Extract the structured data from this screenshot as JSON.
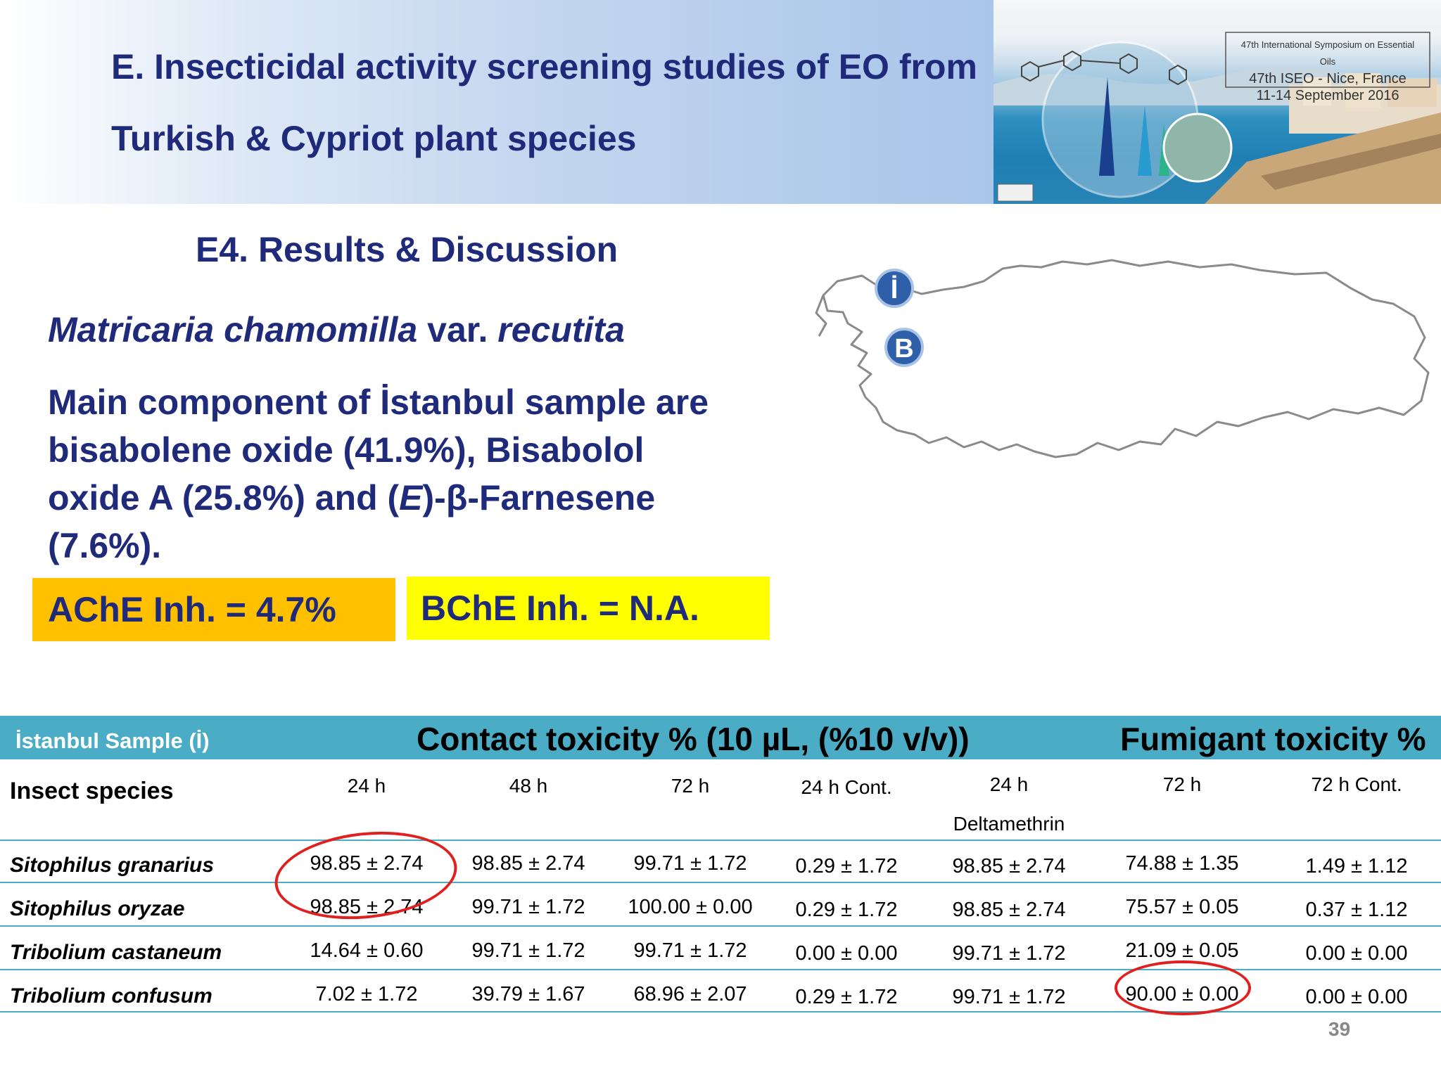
{
  "header": {
    "title_line1": "E. Insecticidal activity screening studies of EO from",
    "title_line2": "Turkish & Cypriot plant species"
  },
  "banner": {
    "line1": "47th International Symposium on Essential Oils",
    "line2": "47th ISEO - Nice, France",
    "line3": "11-14 September 2016"
  },
  "section_title": "E4. Results & Discussion",
  "species": {
    "genus_species": "Matricaria chamomilla",
    "var": "var.",
    "variety": "recutita"
  },
  "main_text": {
    "part1": "Main component of İstanbul sample are bisabolene oxide (41.9%), Bisabolol oxide A (25.8%) and (",
    "italic": "E",
    "part2": ")-β-Farnesene (7.6%)."
  },
  "boxes": {
    "ache": "AChE Inh. = 4.7%",
    "bche": "BChE Inh. = N.A."
  },
  "map": {
    "marker_istanbul": "İ",
    "marker_b": "B"
  },
  "table": {
    "sample_label": "İstanbul Sample (İ)",
    "contact_title": "Contact toxicity %  (10 µL, (%10 v/v))",
    "fumigant_title": "Fumigant toxicity %",
    "insect_header": "Insect species",
    "columns": [
      "24 h",
      "48 h",
      "72 h",
      "24 h Cont.",
      "24 h",
      "72 h",
      "72 h Cont."
    ],
    "column_sub": "Deltamethrin",
    "rows": [
      {
        "species": "Sitophilus granarius",
        "values": [
          "98.85 ± 2.74",
          "98.85 ± 2.74",
          "99.71 ± 1.72",
          "0.29 ± 1.72",
          "98.85 ± 2.74",
          "74.88 ± 1.35",
          "1.49 ± 1.12"
        ]
      },
      {
        "species": "Sitophilus oryzae",
        "values": [
          "98.85 ± 2.74",
          "99.71 ± 1.72",
          "100.00 ± 0.00",
          "0.29 ± 1.72",
          "98.85 ± 2.74",
          "75.57 ± 0.05",
          "0.37 ± 1.12"
        ]
      },
      {
        "species": "Tribolium castaneum",
        "values": [
          "14.64 ± 0.60",
          "99.71 ± 1.72",
          "99.71 ± 1.72",
          "0.00 ± 0.00",
          "99.71 ± 1.72",
          "21.09 ± 0.05",
          "0.00 ± 0.00"
        ]
      },
      {
        "species": "Tribolium confusum",
        "values": [
          "7.02 ± 1.72",
          "39.79 ± 1.67",
          "68.96 ± 2.07",
          "0.29 ± 1.72",
          "99.71 ± 1.72",
          "90.00 ± 0.00",
          "0.00 ± 0.00"
        ]
      }
    ]
  },
  "slide_number": "39",
  "colors": {
    "title": "#1f2b7a",
    "table_header": "#4bacc6",
    "ache_box": "#ffc000",
    "bche_box": "#ffff00",
    "highlight_circle": "#e0201e"
  }
}
